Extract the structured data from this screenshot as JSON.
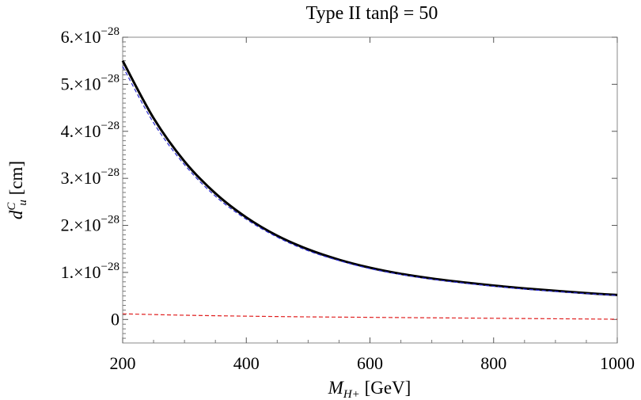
{
  "chart_data": {
    "type": "line",
    "title": "Type II     tanβ = 50",
    "xlabel_main": "M",
    "xlabel_sub": "H+",
    "xlabel_unit": " [GeV]",
    "ylabel_main": "d",
    "ylabel_sup": "C",
    "ylabel_sub": "u",
    "ylabel_unit": " [cm]",
    "xlim": [
      200,
      1000
    ],
    "ylim": [
      -5e-29,
      6e-28
    ],
    "x_ticks": [
      {
        "value": 200,
        "label": "200"
      },
      {
        "value": 400,
        "label": "400"
      },
      {
        "value": 600,
        "label": "600"
      },
      {
        "value": 800,
        "label": "800"
      },
      {
        "value": 1000,
        "label": "1000"
      }
    ],
    "y_ticks": [
      {
        "value": 0,
        "mantissa": "0",
        "exponent": ""
      },
      {
        "value": 1e-28,
        "mantissa": "1.×10",
        "exponent": "−28"
      },
      {
        "value": 2e-28,
        "mantissa": "2.×10",
        "exponent": "−28"
      },
      {
        "value": 3e-28,
        "mantissa": "3.×10",
        "exponent": "−28"
      },
      {
        "value": 4e-28,
        "mantissa": "4.×10",
        "exponent": "−28"
      },
      {
        "value": 5e-28,
        "mantissa": "5.×10",
        "exponent": "−28"
      },
      {
        "value": 6e-28,
        "mantissa": "6.×10",
        "exponent": "−28"
      }
    ],
    "series": [
      {
        "color": "#000000",
        "style": "solid",
        "x": [
          200,
          250,
          300,
          350,
          400,
          450,
          500,
          550,
          600,
          650,
          700,
          750,
          800,
          850,
          900,
          950,
          1000
        ],
        "y": [
          5.5e-28,
          4.28e-28,
          3.36e-28,
          2.68e-28,
          2.17e-28,
          1.78e-28,
          1.49e-28,
          1.27e-28,
          1.1e-28,
          9.7e-29,
          8.7e-29,
          7.9e-29,
          7.2e-29,
          6.6e-29,
          6.1e-29,
          5.6e-29,
          5.2e-29
        ]
      },
      {
        "color": "#2a2ad0",
        "style": "dashed",
        "x": [
          200,
          250,
          300,
          350,
          400,
          450,
          500,
          550,
          600,
          650,
          700,
          750,
          800,
          850,
          900,
          950,
          1000
        ],
        "y": [
          5.38e-28,
          4.18e-28,
          3.29e-28,
          2.62e-28,
          2.13e-28,
          1.75e-28,
          1.46e-28,
          1.25e-28,
          1.08e-28,
          9.55e-29,
          8.55e-29,
          7.75e-29,
          7.05e-29,
          6.45e-29,
          5.95e-29,
          5.5e-29,
          5.1e-29
        ]
      },
      {
        "color": "#e02020",
        "style": "dashed",
        "x": [
          200,
          300,
          400,
          500,
          600,
          700,
          800,
          900,
          1000
        ],
        "y": [
          1.2e-29,
          9e-30,
          7e-30,
          5.5e-30,
          4.5e-30,
          3.5e-30,
          2.5e-30,
          1.5e-30,
          5e-31
        ]
      }
    ]
  }
}
